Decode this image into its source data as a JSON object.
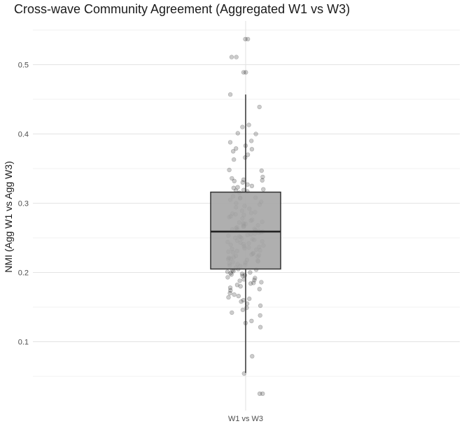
{
  "chart_data": {
    "type": "box",
    "title": "Cross-wave Community Agreement (Aggregated W1 vs W3)",
    "xlabel": "",
    "ylabel": "NMI (Agg W1 vs Agg W3)",
    "categories": [
      "W1 vs W3"
    ],
    "ylim": [
      0.008,
      0.555
    ],
    "yticks": [
      "0.1",
      "0.2",
      "0.3",
      "0.4",
      "0.5"
    ],
    "grid": true,
    "box": {
      "whisker_low": 0.055,
      "q1": 0.205,
      "median": 0.259,
      "q3": 0.316,
      "whisker_high": 0.457,
      "fill": "#a6a6a6"
    },
    "points": [
      0.537,
      0.537,
      0.511,
      0.511,
      0.489,
      0.489,
      0.457,
      0.439,
      0.413,
      0.41,
      0.401,
      0.4,
      0.39,
      0.388,
      0.383,
      0.379,
      0.378,
      0.375,
      0.37,
      0.366,
      0.363,
      0.348,
      0.347,
      0.338,
      0.336,
      0.334,
      0.333,
      0.332,
      0.33,
      0.327,
      0.325,
      0.323,
      0.322,
      0.32,
      0.319,
      0.318,
      0.317,
      0.315,
      0.31,
      0.308,
      0.308,
      0.307,
      0.305,
      0.302,
      0.3,
      0.298,
      0.296,
      0.294,
      0.292,
      0.289,
      0.287,
      0.286,
      0.285,
      0.284,
      0.283,
      0.281,
      0.28,
      0.278,
      0.276,
      0.275,
      0.273,
      0.272,
      0.271,
      0.27,
      0.269,
      0.268,
      0.267,
      0.266,
      0.265,
      0.264,
      0.263,
      0.262,
      0.262,
      0.261,
      0.26,
      0.259,
      0.258,
      0.257,
      0.256,
      0.255,
      0.254,
      0.253,
      0.252,
      0.251,
      0.25,
      0.249,
      0.248,
      0.247,
      0.246,
      0.245,
      0.244,
      0.243,
      0.242,
      0.241,
      0.24,
      0.239,
      0.238,
      0.237,
      0.236,
      0.235,
      0.234,
      0.233,
      0.232,
      0.231,
      0.23,
      0.229,
      0.228,
      0.227,
      0.226,
      0.225,
      0.224,
      0.223,
      0.222,
      0.221,
      0.22,
      0.219,
      0.218,
      0.217,
      0.216,
      0.215,
      0.214,
      0.213,
      0.212,
      0.211,
      0.21,
      0.209,
      0.207,
      0.205,
      0.204,
      0.203,
      0.202,
      0.201,
      0.2,
      0.199,
      0.198,
      0.197,
      0.196,
      0.195,
      0.193,
      0.192,
      0.19,
      0.189,
      0.188,
      0.186,
      0.185,
      0.184,
      0.182,
      0.18,
      0.178,
      0.176,
      0.174,
      0.17,
      0.168,
      0.166,
      0.164,
      0.162,
      0.16,
      0.158,
      0.155,
      0.152,
      0.149,
      0.146,
      0.142,
      0.138,
      0.13,
      0.127,
      0.121,
      0.079,
      0.054,
      0.025,
      0.025
    ],
    "point_color": "#000000"
  }
}
